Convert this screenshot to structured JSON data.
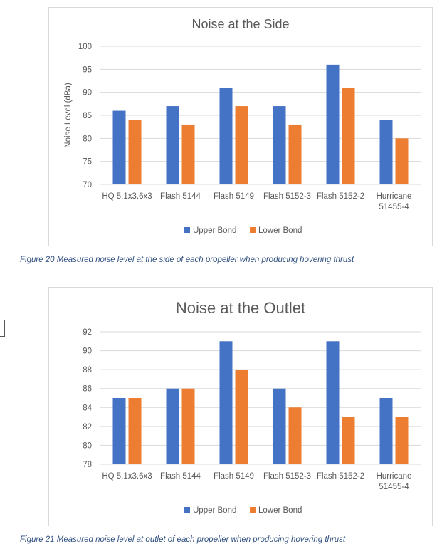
{
  "chart_data": [
    {
      "type": "bar",
      "title": "Noise at the Side",
      "xlabel": "",
      "ylabel": "Noise Level (dBa)",
      "ylim": [
        70,
        100
      ],
      "yticks": [
        70,
        75,
        80,
        85,
        90,
        95,
        100
      ],
      "categories": [
        [
          "HQ 5.1x3.6x3"
        ],
        [
          "Flash 5144"
        ],
        [
          "Flash 5149"
        ],
        [
          "Flash 5152-3"
        ],
        [
          "Flash 5152-2"
        ],
        [
          "Hurricane",
          "51455-4"
        ]
      ],
      "series": [
        {
          "name": "Upper Bond",
          "color": "#4472c4",
          "values": [
            86,
            87,
            91,
            87,
            96,
            84
          ]
        },
        {
          "name": "Lower Bond",
          "color": "#ed7d31",
          "values": [
            84,
            83,
            87,
            83,
            91,
            80
          ]
        }
      ],
      "grid": true,
      "legend": "bottom"
    },
    {
      "type": "bar",
      "title": "Noise at the Outlet",
      "xlabel": "",
      "ylabel": "",
      "ylim": [
        78,
        92
      ],
      "yticks": [
        78,
        80,
        82,
        84,
        86,
        88,
        90,
        92
      ],
      "categories": [
        [
          "HQ 5.1x3.6x3"
        ],
        [
          "Flash 5144"
        ],
        [
          "Flash 5149"
        ],
        [
          "Flash 5152-3"
        ],
        [
          "Flash 5152-2"
        ],
        [
          "Hurricane",
          "51455-4"
        ]
      ],
      "series": [
        {
          "name": "Upper Bond",
          "color": "#4472c4",
          "values": [
            85,
            86,
            91,
            86,
            91,
            85
          ]
        },
        {
          "name": "Lower Bond",
          "color": "#ed7d31",
          "values": [
            85,
            86,
            88,
            84,
            83,
            83
          ]
        }
      ],
      "grid": true,
      "legend": "bottom"
    }
  ],
  "captions": {
    "fig20": "Figure 20 Measured noise level at the side of each propeller when producing hovering thrust",
    "fig21": "Figure 21 Measured noise level at outlet of each propeller when producing hovering thrust"
  }
}
